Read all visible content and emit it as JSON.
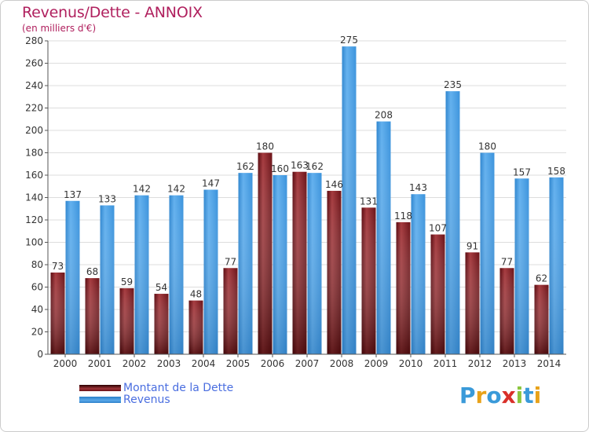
{
  "header": {
    "title": "Revenus/Dette - ANNOIX",
    "subtitle": "(en milliers d'€)"
  },
  "legend": {
    "debt_label": "Montant de la Dette",
    "revenue_label": "Revenus"
  },
  "logo": {
    "letters": [
      "P",
      "r",
      "o",
      "x",
      "i",
      "t",
      "i"
    ],
    "colors": [
      "#3a9ad9",
      "#e8a21a",
      "#3a9ad9",
      "#d9302a",
      "#8cc63f",
      "#3a9ad9",
      "#e8a21a"
    ]
  },
  "colors": {
    "debt": "#8c1c22",
    "revenue": "#4aa3e8",
    "grid": "#dddddd",
    "title": "#b0205e"
  },
  "chart_data": {
    "type": "bar",
    "title": "Revenus/Dette - ANNOIX",
    "subtitle": "(en milliers d'€)",
    "categories": [
      "2000",
      "2001",
      "2002",
      "2003",
      "2004",
      "2005",
      "2006",
      "2007",
      "2008",
      "2009",
      "2010",
      "2011",
      "2012",
      "2013",
      "2014"
    ],
    "series": [
      {
        "name": "Montant de la Dette",
        "values": [
          73,
          68,
          59,
          54,
          48,
          77,
          180,
          163,
          146,
          131,
          118,
          107,
          91,
          77,
          62
        ]
      },
      {
        "name": "Revenus",
        "values": [
          137,
          133,
          142,
          142,
          147,
          162,
          160,
          162,
          275,
          208,
          143,
          235,
          180,
          157,
          158
        ]
      }
    ],
    "ylim": [
      0,
      280
    ],
    "yticks": [
      0,
      20,
      40,
      60,
      80,
      100,
      120,
      140,
      160,
      180,
      200,
      220,
      240,
      260,
      280
    ],
    "grid": true,
    "legend_position": "bottom-left"
  }
}
